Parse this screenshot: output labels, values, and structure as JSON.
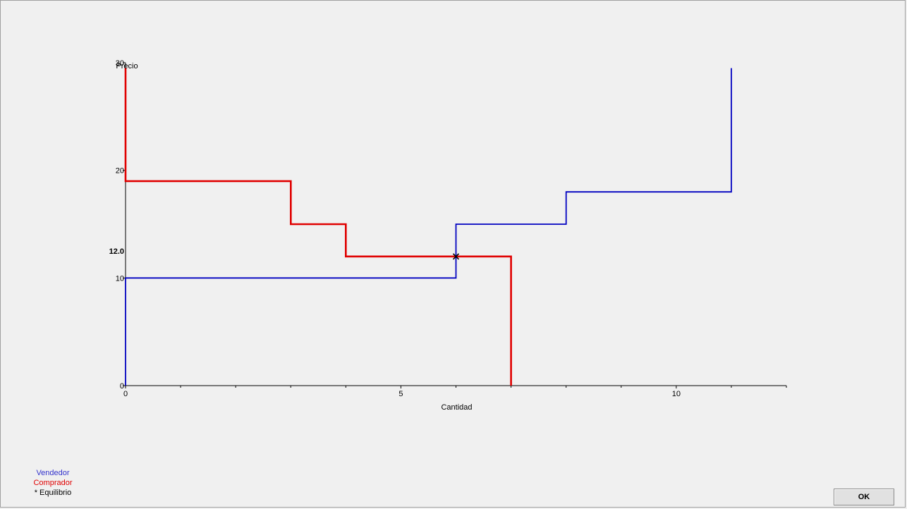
{
  "chart_data": {
    "type": "line",
    "xlabel": "Cantidad",
    "ylabel": "Precio",
    "xlim": [
      0,
      12
    ],
    "ylim": [
      0,
      30
    ],
    "x_ticks": [
      0,
      5,
      10
    ],
    "y_ticks": [
      0,
      10,
      20,
      30
    ],
    "series": [
      {
        "name": "Vendedor",
        "color": "#0000c0",
        "points": [
          [
            0,
            0
          ],
          [
            0,
            10
          ],
          [
            6,
            10
          ],
          [
            6,
            15
          ],
          [
            8,
            15
          ],
          [
            8,
            18
          ],
          [
            11,
            18
          ],
          [
            11,
            29.5
          ]
        ]
      },
      {
        "name": "Comprador",
        "color": "#e00000",
        "points": [
          [
            0,
            29.5
          ],
          [
            0,
            19
          ],
          [
            3,
            19
          ],
          [
            3,
            15
          ],
          [
            4,
            15
          ],
          [
            4,
            12
          ],
          [
            7,
            12
          ],
          [
            7,
            0
          ]
        ]
      }
    ],
    "equilibrium": {
      "name": "* Equilibrio",
      "x": 6,
      "y": 12,
      "label": "12.0"
    }
  },
  "legend": {
    "seller": "Vendedor",
    "buyer": "Comprador",
    "equilibrium": "* Equilibrio",
    "seller_color": "#3333cc",
    "buyer_color": "#e00000",
    "equilibrium_color": "#000000"
  },
  "ok_button": {
    "label": "OK"
  }
}
